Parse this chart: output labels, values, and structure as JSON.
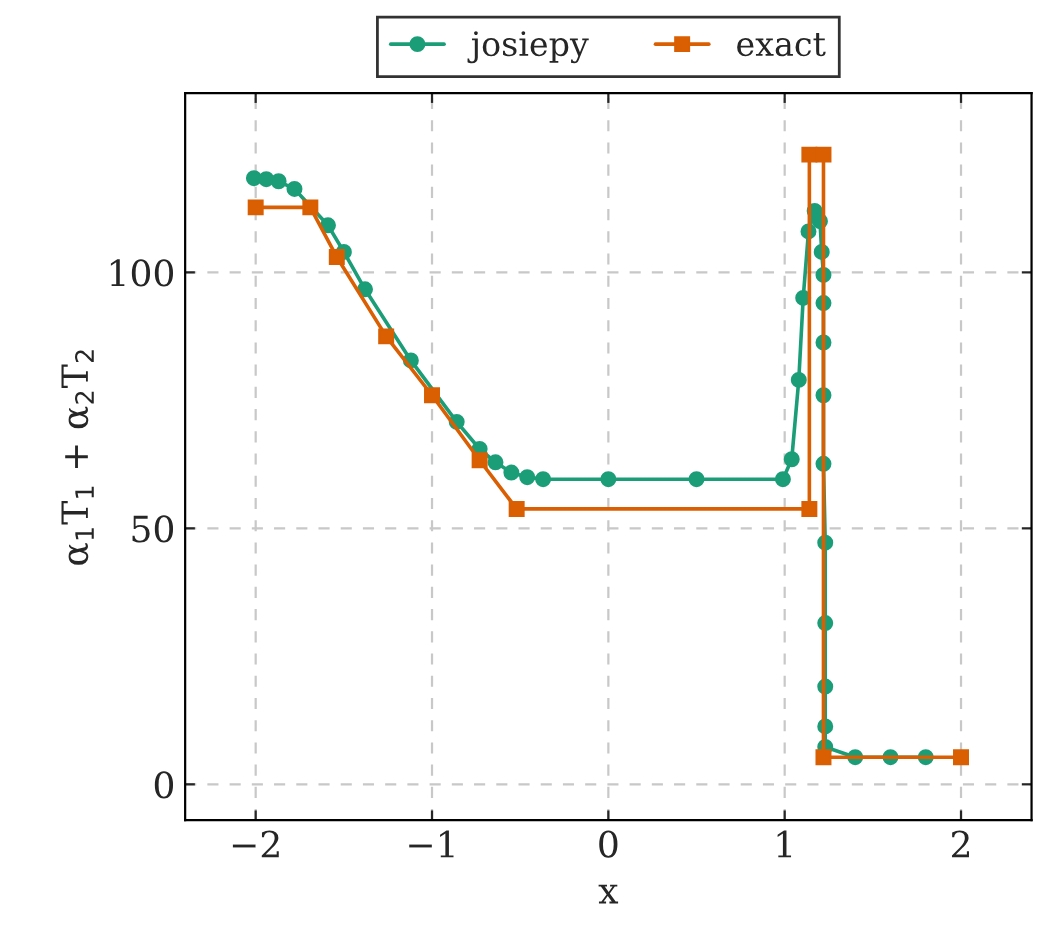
{
  "chart_data": {
    "type": "line",
    "xlabel": "x",
    "ylabel": "α$_{1}$T$_{1}$ + α$_{2}$T$_{2}$",
    "xlim": [
      -2.4,
      2.4
    ],
    "ylim": [
      -7,
      135
    ],
    "xticks": [
      {
        "value": -2,
        "label": "−2"
      },
      {
        "value": -1,
        "label": "−1"
      },
      0,
      1,
      2
    ],
    "yticks": [
      0,
      50,
      100
    ],
    "grid": true,
    "legend": "top",
    "line_style": "solid",
    "series": [
      {
        "name": "josiepy",
        "color": "#1b9e77",
        "marker": "circle",
        "x": [
          -2.01,
          -1.94,
          -1.87,
          -1.78,
          -1.59,
          -1.5,
          -1.38,
          -1.12,
          -0.86,
          -0.73,
          -0.64,
          -0.55,
          -0.46,
          -0.37,
          0,
          0.5,
          0.99,
          1.04,
          1.08,
          1.105,
          1.135,
          1.17,
          1.2,
          1.21,
          1.22,
          1.22,
          1.22,
          1.22,
          1.22,
          1.23,
          1.23,
          1.23,
          1.23,
          1.23,
          1.4,
          1.6,
          1.8
        ],
        "values": [
          118.4,
          118.2,
          117.8,
          116.3,
          109.2,
          104,
          96.7,
          82.8,
          70.8,
          65.5,
          62.9,
          60.9,
          60,
          59.6,
          59.6,
          59.6,
          59.6,
          63.5,
          79,
          95,
          108,
          112,
          110,
          104,
          99.5,
          94,
          86.3,
          76,
          62.6,
          47.2,
          31.5,
          19.1,
          11.3,
          7.3,
          5.3,
          5.3,
          5.3
        ]
      },
      {
        "name": "exact",
        "color": "#d95f02",
        "marker": "square",
        "x": [
          -2,
          -1.69,
          -1.54,
          -1.26,
          -1.0,
          -0.73,
          -0.52,
          1.14,
          1.14,
          1.22,
          1.22,
          2
        ],
        "values": [
          112.7,
          112.7,
          103,
          87.5,
          76,
          63.3,
          53.8,
          53.8,
          123,
          123,
          5.3,
          5.3
        ]
      }
    ]
  }
}
